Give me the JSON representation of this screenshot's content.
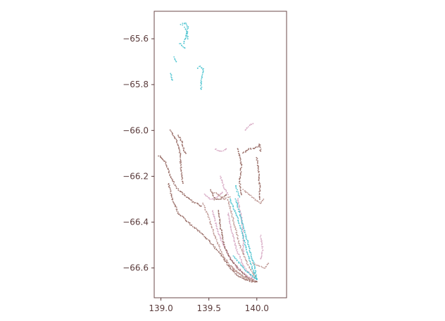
{
  "chart_data": {
    "type": "scatter",
    "title": "",
    "xlabel": "",
    "ylabel": "",
    "xlim": [
      138.93,
      140.31
    ],
    "ylim": [
      -66.73,
      -65.48
    ],
    "xticks": [
      139.0,
      139.5,
      140.0
    ],
    "xtick_labels": [
      "139.0",
      "139.5",
      "140.0"
    ],
    "yticks": [
      -65.6,
      -65.8,
      -66.0,
      -66.2,
      -66.4,
      -66.6
    ],
    "ytick_labels": [
      "−65.6",
      "−65.8",
      "−66.0",
      "−66.2",
      "−66.4",
      "−66.6"
    ],
    "grid": false,
    "legend": "none",
    "series": [
      {
        "color": "#d3a1be",
        "tracks": [
          [
            [
              139.54,
              -66.35
            ],
            [
              139.58,
              -66.42
            ],
            [
              139.63,
              -66.48
            ],
            [
              139.7,
              -66.54
            ],
            [
              139.78,
              -66.59
            ],
            [
              139.88,
              -66.63
            ],
            [
              139.97,
              -66.65
            ]
          ],
          [
            [
              139.46,
              -66.28
            ],
            [
              139.52,
              -66.3
            ],
            [
              139.58,
              -66.29
            ],
            [
              139.64,
              -66.27
            ]
          ],
          [
            [
              139.62,
              -66.2
            ],
            [
              139.66,
              -66.25
            ],
            [
              139.7,
              -66.28
            ]
          ],
          [
            [
              139.88,
              -66.0
            ],
            [
              139.92,
              -65.98
            ],
            [
              139.96,
              -65.97
            ]
          ],
          [
            [
              139.8,
              -66.3
            ],
            [
              139.84,
              -66.38
            ],
            [
              139.86,
              -66.46
            ],
            [
              139.86,
              -66.54
            ]
          ],
          [
            [
              139.7,
              -66.36
            ],
            [
              139.74,
              -66.44
            ],
            [
              139.79,
              -66.52
            ],
            [
              139.86,
              -66.59
            ],
            [
              139.95,
              -66.64
            ]
          ],
          [
            [
              139.57,
              -66.08
            ],
            [
              139.6,
              -66.09
            ],
            [
              139.64,
              -66.09
            ],
            [
              139.68,
              -66.08
            ]
          ],
          [
            [
              140.04,
              -66.46
            ],
            [
              140.06,
              -66.52
            ],
            [
              140.04,
              -66.56
            ]
          ]
        ]
      },
      {
        "color": "#8c5a54",
        "tracks": [
          [
            [
              138.98,
              -66.11
            ],
            [
              139.05,
              -66.14
            ],
            [
              139.1,
              -66.2
            ],
            [
              139.16,
              -66.25
            ],
            [
              139.24,
              -66.28
            ],
            [
              139.33,
              -66.31
            ],
            [
              139.42,
              -66.33
            ]
          ],
          [
            [
              139.1,
              -66.0
            ],
            [
              139.16,
              -66.04
            ],
            [
              139.2,
              -66.1
            ],
            [
              139.21,
              -66.17
            ],
            [
              139.23,
              -66.23
            ]
          ],
          [
            [
              139.18,
              -66.02
            ],
            [
              139.22,
              -66.05
            ],
            [
              139.24,
              -66.09
            ],
            [
              139.26,
              -66.1
            ]
          ],
          [
            [
              139.08,
              -66.23
            ],
            [
              139.12,
              -66.3
            ],
            [
              139.18,
              -66.36
            ],
            [
              139.28,
              -66.4
            ],
            [
              139.4,
              -66.44
            ],
            [
              139.52,
              -66.49
            ],
            [
              139.62,
              -66.54
            ],
            [
              139.72,
              -66.6
            ],
            [
              139.82,
              -66.64
            ],
            [
              139.93,
              -66.66
            ],
            [
              140.0,
              -66.66
            ]
          ],
          [
            [
              139.8,
              -66.08
            ],
            [
              139.84,
              -66.15
            ],
            [
              139.82,
              -66.22
            ],
            [
              139.84,
              -66.28
            ]
          ],
          [
            [
              139.86,
              -66.1
            ],
            [
              139.92,
              -66.08
            ],
            [
              139.98,
              -66.08
            ],
            [
              140.03,
              -66.06
            ],
            [
              140.04,
              -66.09
            ]
          ],
          [
            [
              140.0,
              -66.12
            ],
            [
              140.02,
              -66.18
            ],
            [
              140.03,
              -66.25
            ],
            [
              140.03,
              -66.3
            ]
          ],
          [
            [
              139.52,
              -66.26
            ],
            [
              139.56,
              -66.3
            ],
            [
              139.62,
              -66.3
            ],
            [
              139.68,
              -66.28
            ]
          ],
          [
            [
              139.6,
              -66.35
            ],
            [
              139.62,
              -66.42
            ],
            [
              139.66,
              -66.5
            ],
            [
              139.72,
              -66.56
            ],
            [
              139.82,
              -66.61
            ],
            [
              139.92,
              -66.65
            ],
            [
              140.0,
              -66.66
            ]
          ]
        ]
      },
      {
        "color": "#b88e8a",
        "tracks": [
          [
            [
              139.44,
              -66.32
            ],
            [
              139.5,
              -66.38
            ],
            [
              139.56,
              -66.46
            ],
            [
              139.64,
              -66.54
            ],
            [
              139.74,
              -66.6
            ],
            [
              139.86,
              -66.64
            ],
            [
              139.96,
              -66.66
            ]
          ],
          [
            [
              139.55,
              -66.27
            ],
            [
              139.6,
              -66.28
            ],
            [
              139.66,
              -66.3
            ],
            [
              139.72,
              -66.29
            ]
          ],
          [
            [
              139.86,
              -66.26
            ],
            [
              139.92,
              -66.28
            ],
            [
              139.98,
              -66.3
            ],
            [
              140.04,
              -66.32
            ],
            [
              140.07,
              -66.3
            ]
          ],
          [
            [
              139.96,
              -66.58
            ],
            [
              140.02,
              -66.59
            ],
            [
              140.08,
              -66.6
            ],
            [
              140.12,
              -66.58
            ]
          ],
          [
            [
              139.7,
              -66.3
            ],
            [
              139.76,
              -66.4
            ],
            [
              139.82,
              -66.5
            ],
            [
              139.9,
              -66.58
            ],
            [
              139.98,
              -66.64
            ]
          ],
          [
            [
              139.73,
              -66.59
            ],
            [
              139.8,
              -66.62
            ],
            [
              139.88,
              -66.64
            ],
            [
              139.96,
              -66.65
            ]
          ]
        ]
      },
      {
        "color": "#3fbfcc",
        "tracks": [
          [
            [
              139.21,
              -65.54
            ],
            [
              139.25,
              -65.53
            ],
            [
              139.28,
              -65.55
            ],
            [
              139.27,
              -65.58
            ],
            [
              139.25,
              -65.6
            ],
            [
              139.24,
              -65.62
            ]
          ],
          [
            [
              139.25,
              -65.55
            ],
            [
              139.27,
              -65.57
            ],
            [
              139.28,
              -65.6
            ]
          ],
          [
            [
              139.2,
              -65.62
            ],
            [
              139.22,
              -65.63
            ],
            [
              139.25,
              -65.64
            ]
          ],
          [
            [
              139.14,
              -65.68
            ],
            [
              139.16,
              -65.7
            ]
          ],
          [
            [
              139.1,
              -65.75
            ],
            [
              139.12,
              -65.78
            ]
          ],
          [
            [
              139.38,
              -65.73
            ],
            [
              139.41,
              -65.72
            ],
            [
              139.44,
              -65.73
            ],
            [
              139.43,
              -65.76
            ],
            [
              139.42,
              -65.79
            ],
            [
              139.42,
              -65.82
            ]
          ],
          [
            [
              139.72,
              -66.3
            ],
            [
              139.76,
              -66.34
            ],
            [
              139.8,
              -66.38
            ],
            [
              139.84,
              -66.44
            ],
            [
              139.88,
              -66.5
            ],
            [
              139.92,
              -66.56
            ],
            [
              139.96,
              -66.61
            ],
            [
              140.0,
              -66.65
            ]
          ],
          [
            [
              139.78,
              -66.3
            ],
            [
              139.82,
              -66.36
            ],
            [
              139.86,
              -66.42
            ],
            [
              139.9,
              -66.48
            ],
            [
              139.94,
              -66.54
            ],
            [
              139.98,
              -66.6
            ],
            [
              140.0,
              -66.65
            ]
          ],
          [
            [
              139.76,
              -66.55
            ],
            [
              139.82,
              -66.58
            ],
            [
              139.88,
              -66.61
            ],
            [
              139.94,
              -66.63
            ],
            [
              140.0,
              -66.65
            ]
          ],
          [
            [
              139.78,
              -66.24
            ],
            [
              139.8,
              -66.27
            ],
            [
              139.82,
              -66.29
            ]
          ]
        ]
      }
    ]
  }
}
